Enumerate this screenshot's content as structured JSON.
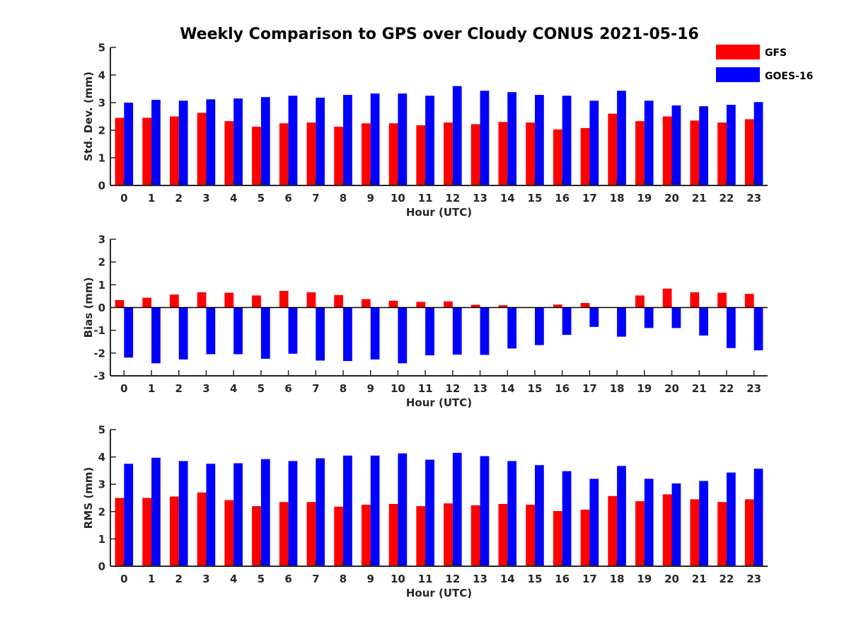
{
  "title": "Weekly Comparison to GPS over Cloudy CONUS 2021-05-16",
  "legend": [
    {
      "label": "GFS",
      "color": "#ff0000"
    },
    {
      "label": "GOES-16",
      "color": "#0000ff"
    }
  ],
  "chart_data": [
    {
      "type": "bar",
      "xlabel": "Hour (UTC)",
      "ylabel": "Std. Dev. (mm)",
      "ylim": [
        0,
        5
      ],
      "yticks": [
        0,
        1,
        2,
        3,
        4,
        5
      ],
      "categories": [
        "0",
        "1",
        "2",
        "3",
        "4",
        "5",
        "6",
        "7",
        "8",
        "9",
        "10",
        "11",
        "12",
        "13",
        "14",
        "15",
        "16",
        "17",
        "18",
        "19",
        "20",
        "21",
        "22",
        "23"
      ],
      "series": [
        {
          "name": "GFS",
          "color": "#ff0000",
          "values": [
            2.45,
            2.45,
            2.5,
            2.63,
            2.33,
            2.13,
            2.25,
            2.28,
            2.13,
            2.25,
            2.25,
            2.18,
            2.28,
            2.22,
            2.3,
            2.28,
            2.03,
            2.08,
            2.6,
            2.33,
            2.5,
            2.35,
            2.28,
            2.4
          ]
        },
        {
          "name": "GOES-16",
          "color": "#0000ff",
          "values": [
            3.0,
            3.1,
            3.07,
            3.12,
            3.15,
            3.2,
            3.25,
            3.18,
            3.28,
            3.33,
            3.33,
            3.25,
            3.6,
            3.43,
            3.38,
            3.28,
            3.25,
            3.07,
            3.43,
            3.07,
            2.9,
            2.87,
            2.92,
            3.02
          ]
        }
      ]
    },
    {
      "type": "bar",
      "xlabel": "Hour (UTC)",
      "ylabel": "Bias (mm)",
      "ylim": [
        -3,
        3
      ],
      "yticks": [
        -3,
        -2,
        -1,
        0,
        1,
        2,
        3
      ],
      "categories": [
        "0",
        "1",
        "2",
        "3",
        "4",
        "5",
        "6",
        "7",
        "8",
        "9",
        "10",
        "11",
        "12",
        "13",
        "14",
        "15",
        "16",
        "17",
        "18",
        "19",
        "20",
        "21",
        "22",
        "23"
      ],
      "series": [
        {
          "name": "GFS",
          "color": "#ff0000",
          "values": [
            0.33,
            0.43,
            0.57,
            0.67,
            0.65,
            0.53,
            0.73,
            0.67,
            0.55,
            0.37,
            0.3,
            0.25,
            0.27,
            0.12,
            0.1,
            0.0,
            0.13,
            0.2,
            0.0,
            0.53,
            0.83,
            0.67,
            0.65,
            0.6
          ]
        },
        {
          "name": "GOES-16",
          "color": "#0000ff",
          "values": [
            -2.2,
            -2.45,
            -2.28,
            -2.05,
            -2.05,
            -2.25,
            -2.03,
            -2.33,
            -2.35,
            -2.28,
            -2.45,
            -2.1,
            -2.07,
            -2.08,
            -1.8,
            -1.65,
            -1.2,
            -0.85,
            -1.28,
            -0.9,
            -0.9,
            -1.23,
            -1.78,
            -1.88
          ]
        }
      ]
    },
    {
      "type": "bar",
      "xlabel": "Hour (UTC)",
      "ylabel": "RMS (mm)",
      "ylim": [
        0,
        5
      ],
      "yticks": [
        0,
        1,
        2,
        3,
        4,
        5
      ],
      "categories": [
        "0",
        "1",
        "2",
        "3",
        "4",
        "5",
        "6",
        "7",
        "8",
        "9",
        "10",
        "11",
        "12",
        "13",
        "14",
        "15",
        "16",
        "17",
        "18",
        "19",
        "20",
        "21",
        "22",
        "23"
      ],
      "series": [
        {
          "name": "GFS",
          "color": "#ff0000",
          "values": [
            2.5,
            2.5,
            2.55,
            2.7,
            2.42,
            2.2,
            2.35,
            2.35,
            2.18,
            2.25,
            2.28,
            2.2,
            2.3,
            2.23,
            2.28,
            2.25,
            2.02,
            2.07,
            2.57,
            2.38,
            2.63,
            2.45,
            2.35,
            2.45
          ]
        },
        {
          "name": "GOES-16",
          "color": "#0000ff",
          "values": [
            3.75,
            3.97,
            3.85,
            3.75,
            3.77,
            3.92,
            3.85,
            3.95,
            4.05,
            4.05,
            4.13,
            3.9,
            4.15,
            4.03,
            3.85,
            3.7,
            3.48,
            3.2,
            3.67,
            3.2,
            3.03,
            3.12,
            3.43,
            3.57
          ]
        }
      ]
    }
  ]
}
